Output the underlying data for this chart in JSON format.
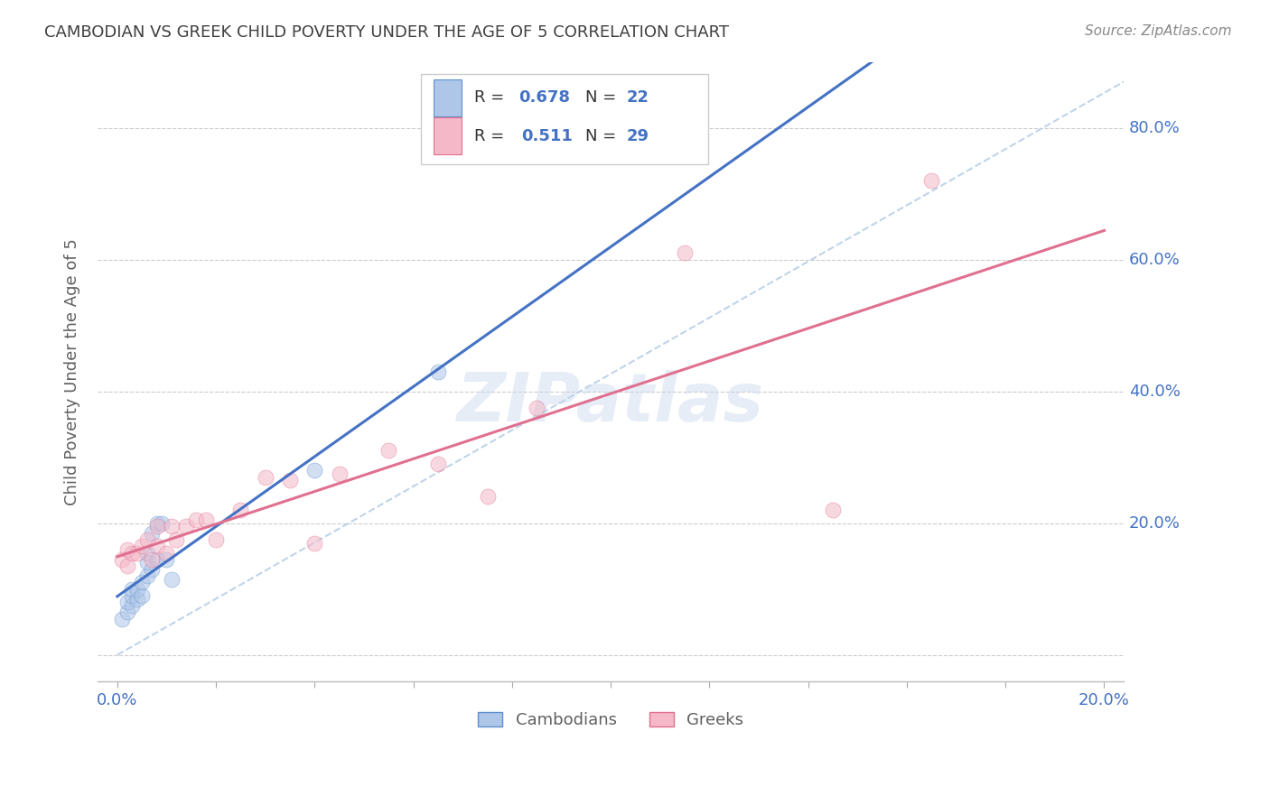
{
  "title": "CAMBODIAN VS GREEK CHILD POVERTY UNDER THE AGE OF 5 CORRELATION CHART",
  "source": "Source: ZipAtlas.com",
  "ylabel": "Child Poverty Under the Age of 5",
  "xlim": [
    -0.004,
    0.204
  ],
  "ylim": [
    -0.04,
    0.9
  ],
  "cambodian_R": 0.678,
  "cambodian_N": 22,
  "greek_R": 0.511,
  "greek_N": 29,
  "cambodian_color": "#aec6e8",
  "greek_color": "#f4b8c8",
  "cambodian_edge_color": "#6090cc",
  "greek_edge_color": "#e07090",
  "cambodian_line_color": "#4472c4",
  "greek_line_color": "#e07090",
  "diagonal_color": "#b8d0e8",
  "background_color": "#ffffff",
  "grid_color": "#cccccc",
  "title_color": "#404040",
  "axis_label_color": "#606060",
  "tick_label_color": "#4472c4",
  "legend_text_color": "#333333",
  "legend_val_color": "#4472c4",
  "cambodian_x": [
    0.001,
    0.002,
    0.002,
    0.003,
    0.003,
    0.003,
    0.004,
    0.004,
    0.005,
    0.005,
    0.006,
    0.006,
    0.006,
    0.007,
    0.007,
    0.008,
    0.008,
    0.009,
    0.01,
    0.011,
    0.04,
    0.065
  ],
  "cambodian_y": [
    0.055,
    0.065,
    0.08,
    0.075,
    0.09,
    0.1,
    0.085,
    0.1,
    0.09,
    0.11,
    0.12,
    0.14,
    0.155,
    0.13,
    0.185,
    0.145,
    0.2,
    0.2,
    0.145,
    0.115,
    0.28,
    0.43
  ],
  "greek_x": [
    0.001,
    0.002,
    0.002,
    0.003,
    0.004,
    0.005,
    0.006,
    0.007,
    0.008,
    0.008,
    0.01,
    0.011,
    0.012,
    0.014,
    0.016,
    0.018,
    0.02,
    0.025,
    0.03,
    0.035,
    0.04,
    0.045,
    0.055,
    0.065,
    0.075,
    0.085,
    0.115,
    0.145,
    0.165
  ],
  "greek_y": [
    0.145,
    0.135,
    0.16,
    0.155,
    0.155,
    0.165,
    0.175,
    0.145,
    0.165,
    0.195,
    0.155,
    0.195,
    0.175,
    0.195,
    0.205,
    0.205,
    0.175,
    0.22,
    0.27,
    0.265,
    0.17,
    0.275,
    0.31,
    0.29,
    0.24,
    0.375,
    0.61,
    0.22,
    0.72
  ],
  "marker_size": 150,
  "marker_alpha": 0.55,
  "line_width": 2.2
}
